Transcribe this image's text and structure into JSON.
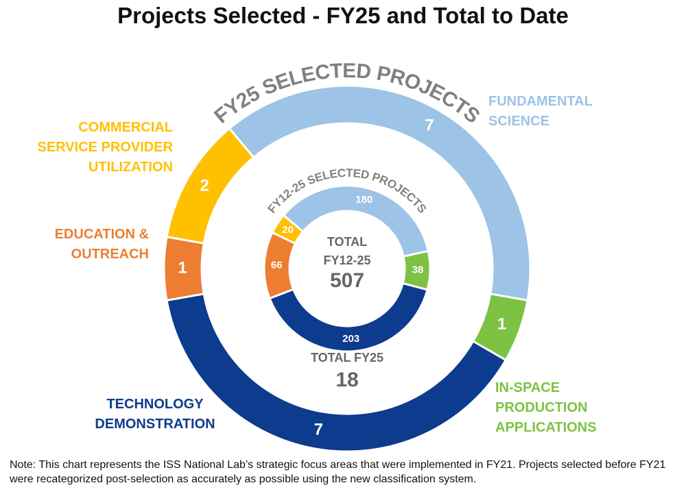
{
  "chart_data": {
    "type": "donut",
    "title": "Projects Selected - FY25 and Total to Date",
    "categories": [
      "FUNDAMENTAL SCIENCE",
      "IN-SPACE PRODUCTION APPLICATIONS",
      "TECHNOLOGY DEMONSTRATION",
      "EDUCATION & OUTREACH",
      "COMMERCIAL SERVICE PROVIDER UTILIZATION"
    ],
    "colors": [
      "#9dc3e6",
      "#7dc242",
      "#0d3b8e",
      "#ed7d31",
      "#ffc000"
    ],
    "series": [
      {
        "name": "FY25 SELECTED PROJECTS",
        "values": [
          7,
          1,
          7,
          1,
          2
        ]
      },
      {
        "name": "FY12-25 SELECTED PROJECTS",
        "values": [
          180,
          38,
          203,
          66,
          20
        ]
      }
    ],
    "totals": [
      {
        "label": "TOTAL FY25",
        "value": 18
      },
      {
        "label": "TOTAL FY12-25",
        "value": 507
      }
    ],
    "note": "Note: This chart represents the ISS National Lab’s strategic focus areas that were implemented in FY21. Projects selected before FY21 were recategorized post-selection as accurately as possible using the new classification system."
  }
}
